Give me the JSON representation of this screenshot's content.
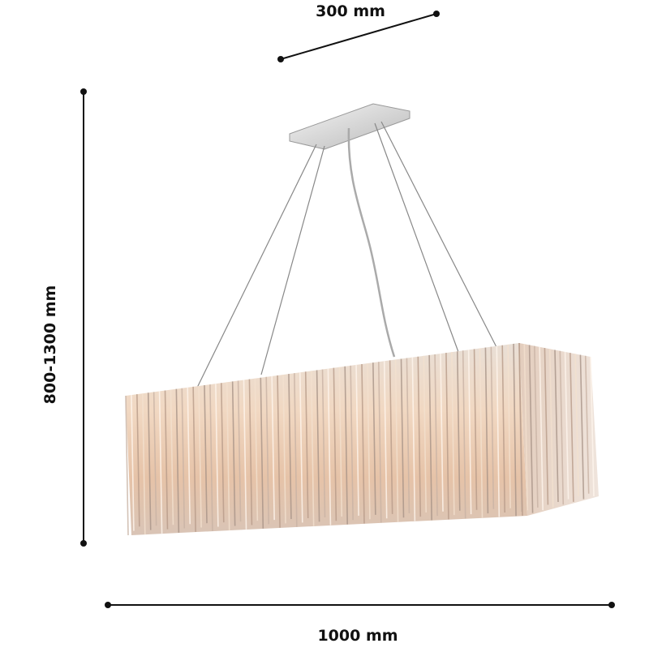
{
  "dimensions": {
    "depth": "300 mm",
    "height": "800-1300 mm",
    "width": "1000 mm"
  }
}
